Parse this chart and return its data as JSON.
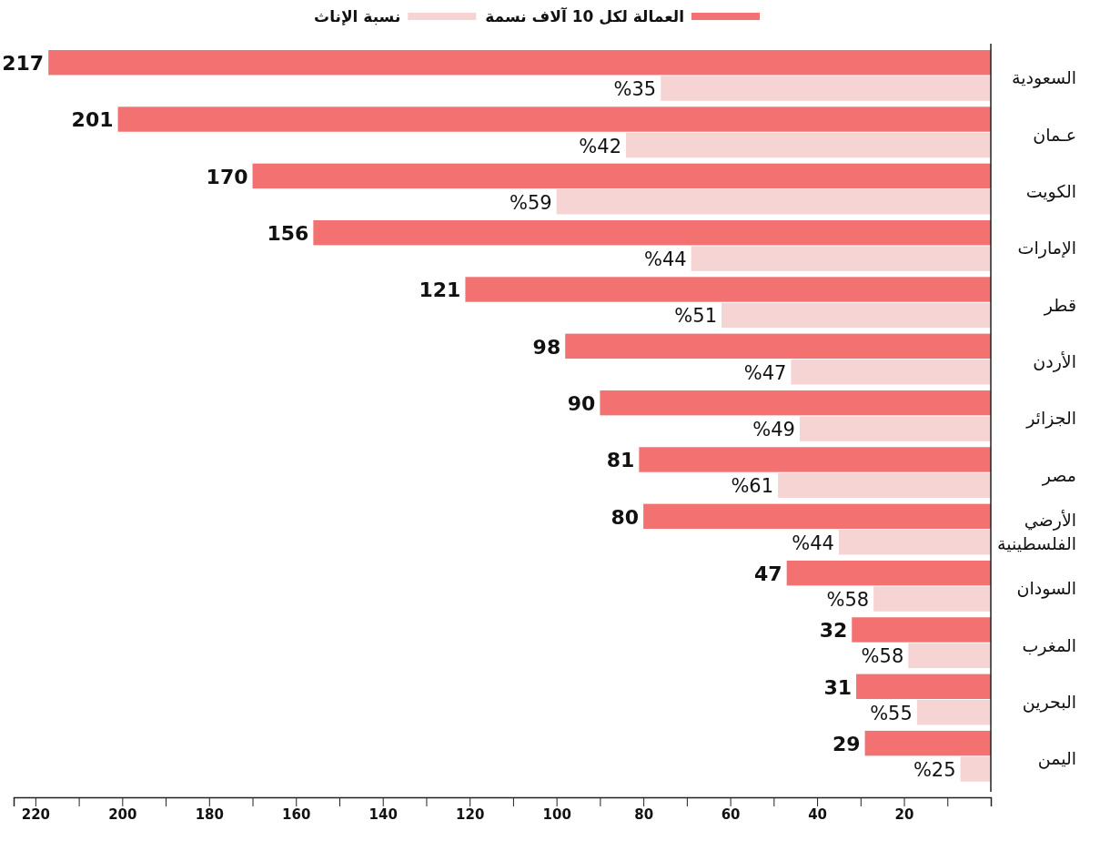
{
  "chart_data": {
    "type": "bar",
    "orientation": "horizontal",
    "legend": "top",
    "categories": [
      "السعودية",
      "عـمان",
      "الكويت",
      "الإمارات",
      "قطر",
      "الأردن",
      "الجزائر",
      "مصر",
      "الأرضي الفلسطينية",
      "السودان",
      "المغرب",
      "البحرين",
      "اليمن"
    ],
    "series": [
      {
        "name": "العمالة لكل 10 آلاف نسمة",
        "color": "#f47171",
        "values": [
          217,
          201,
          170,
          156,
          121,
          98,
          90,
          81,
          80,
          47,
          32,
          31,
          29
        ],
        "value_labels": [
          "217",
          "201",
          "170",
          "156",
          "121",
          "98",
          "90",
          "81",
          "80",
          "47",
          "32",
          "31",
          "29"
        ]
      },
      {
        "name": "نسبة الإناث",
        "color": "#f5d4d3",
        "values": [
          76,
          84,
          100,
          69,
          62,
          46,
          44,
          49,
          35,
          27,
          19,
          17,
          7
        ]
      }
    ],
    "annotations": [
      {
        "text": "%35",
        "x": 76,
        "y": "السعودية"
      },
      {
        "text": "%42",
        "x": 84,
        "y": "عـمان"
      },
      {
        "text": "%59",
        "x": 100,
        "y": "الكويت"
      },
      {
        "text": "%44",
        "x": 69,
        "y": "الإمارات"
      },
      {
        "text": "%51",
        "x": 62,
        "y": "قطر"
      },
      {
        "text": "%47",
        "x": 46,
        "y": "الأردن"
      },
      {
        "text": "%49",
        "x": 44,
        "y": "الجزائر"
      },
      {
        "text": "%61",
        "x": 49,
        "y": "مصر"
      },
      {
        "text": "%44",
        "x": 35,
        "y": "الأرضي الفلسطينية"
      },
      {
        "text": "%58",
        "x": 27,
        "y": "السودان"
      },
      {
        "text": "%58",
        "x": 19,
        "y": "المغرب"
      },
      {
        "text": "%55",
        "x": 17,
        "y": "البحرين"
      },
      {
        "text": "%25",
        "x": 7,
        "y": "اليمن"
      }
    ],
    "xlim": [
      225,
      0
    ],
    "xticks": [
      {
        "value": 210,
        "label": null
      },
      220,
      {
        "value": 190,
        "label": null
      },
      200,
      {
        "value": 170,
        "label": null
      },
      180,
      {
        "value": 150,
        "label": null
      },
      160,
      {
        "value": 130,
        "label": null
      },
      140,
      {
        "value": 110,
        "label": null
      },
      120,
      {
        "value": 90,
        "label": null
      },
      100,
      {
        "value": 70,
        "label": null
      },
      80,
      {
        "value": 50,
        "label": null
      },
      60,
      {
        "value": 30,
        "label": null
      },
      40,
      {
        "value": 10,
        "label": null
      },
      20
    ]
  }
}
